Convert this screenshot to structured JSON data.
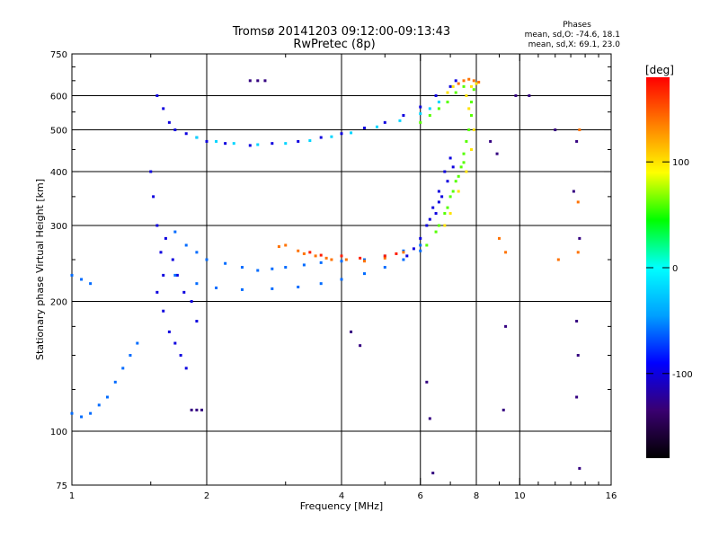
{
  "chart_data": {
    "type": "scatter",
    "title": "Tromsø 20141203 09:12:00-09:13:43",
    "subtitle": "RwPretec (8p)",
    "xlabel": "Frequency [MHz]",
    "ylabel": "Stationary phase Virtual Height [km]",
    "x_scale": "log",
    "y_scale": "log",
    "xlim": [
      1,
      16
    ],
    "ylim": [
      75,
      750
    ],
    "x_ticks": [
      1,
      2,
      4,
      6,
      8,
      10,
      16
    ],
    "y_ticks": [
      75,
      100,
      200,
      300,
      400,
      500,
      600,
      750
    ],
    "grid": true,
    "phase_stats": {
      "heading": "Phases",
      "line_o": "mean, sd,O: -74.6, 18.1",
      "line_x": "mean, sd,X:  69.1, 23.0"
    },
    "colorbar": {
      "label": "[deg]",
      "ticks": [
        100,
        0,
        -100
      ],
      "range": [
        -180,
        180
      ],
      "colormap": [
        "#000000",
        "#3a0070",
        "#0000ff",
        "#00a0ff",
        "#00ffff",
        "#00ff00",
        "#ffff00",
        "#ff8000",
        "#ff0000"
      ]
    },
    "series": [
      {
        "phase": -100,
        "points": [
          [
            1.55,
            600
          ],
          [
            1.6,
            560
          ],
          [
            1.65,
            520
          ],
          [
            1.7,
            500
          ],
          [
            1.8,
            490
          ],
          [
            1.9,
            480
          ],
          [
            2.0,
            470
          ],
          [
            2.2,
            465
          ],
          [
            2.5,
            460
          ],
          [
            2.8,
            465
          ],
          [
            3.2,
            470
          ],
          [
            3.6,
            480
          ],
          [
            4.0,
            490
          ],
          [
            4.5,
            505
          ],
          [
            5.0,
            520
          ],
          [
            5.5,
            540
          ],
          [
            6.0,
            565
          ],
          [
            6.5,
            600
          ],
          [
            7.0,
            630
          ],
          [
            7.2,
            650
          ],
          [
            1.5,
            400
          ],
          [
            1.52,
            350
          ],
          [
            1.55,
            300
          ],
          [
            1.58,
            260
          ],
          [
            1.6,
            230
          ],
          [
            1.55,
            210
          ],
          [
            1.6,
            190
          ],
          [
            1.65,
            170
          ],
          [
            1.7,
            160
          ],
          [
            1.75,
            150
          ],
          [
            1.8,
            140
          ],
          [
            1.62,
            280
          ],
          [
            1.68,
            250
          ],
          [
            1.72,
            230
          ],
          [
            1.78,
            210
          ],
          [
            1.85,
            200
          ],
          [
            1.9,
            180
          ],
          [
            6.0,
            280
          ],
          [
            6.2,
            300
          ],
          [
            6.4,
            330
          ],
          [
            6.6,
            360
          ],
          [
            6.8,
            400
          ],
          [
            7.0,
            430
          ],
          [
            6.5,
            320
          ],
          [
            6.7,
            350
          ],
          [
            6.9,
            380
          ],
          [
            7.1,
            410
          ],
          [
            6.3,
            310
          ],
          [
            6.6,
            340
          ],
          [
            5.8,
            265
          ],
          [
            5.6,
            255
          ]
        ]
      },
      {
        "phase": -60,
        "points": [
          [
            1.7,
            290
          ],
          [
            1.8,
            270
          ],
          [
            1.9,
            260
          ],
          [
            2.0,
            250
          ],
          [
            2.2,
            245
          ],
          [
            2.4,
            240
          ],
          [
            2.6,
            236
          ],
          [
            2.8,
            238
          ],
          [
            3.0,
            240
          ],
          [
            3.3,
            243
          ],
          [
            3.6,
            246
          ],
          [
            4.0,
            248
          ],
          [
            4.5,
            250
          ],
          [
            5.0,
            255
          ],
          [
            5.5,
            262
          ],
          [
            6.0,
            270
          ],
          [
            1.7,
            230
          ],
          [
            1.9,
            220
          ],
          [
            2.1,
            215
          ],
          [
            2.4,
            213
          ],
          [
            2.8,
            214
          ],
          [
            3.2,
            216
          ],
          [
            3.6,
            220
          ],
          [
            4.0,
            225
          ],
          [
            4.5,
            232
          ],
          [
            5.0,
            240
          ],
          [
            5.5,
            250
          ],
          [
            6.0,
            262
          ],
          [
            1.4,
            160
          ],
          [
            1.35,
            150
          ],
          [
            1.3,
            140
          ],
          [
            1.25,
            130
          ],
          [
            1.2,
            120
          ],
          [
            1.15,
            115
          ],
          [
            1.1,
            110
          ],
          [
            1.05,
            108
          ],
          [
            1.0,
            110
          ],
          [
            1.0,
            230
          ],
          [
            1.05,
            225
          ],
          [
            1.1,
            220
          ]
        ]
      },
      {
        "phase": -20,
        "points": [
          [
            1.9,
            480
          ],
          [
            2.1,
            470
          ],
          [
            2.3,
            465
          ],
          [
            2.6,
            462
          ],
          [
            3.0,
            465
          ],
          [
            3.4,
            472
          ],
          [
            3.8,
            482
          ],
          [
            4.2,
            492
          ],
          [
            4.8,
            508
          ],
          [
            5.4,
            525
          ],
          [
            6.0,
            545
          ],
          [
            6.3,
            560
          ],
          [
            6.6,
            580
          ]
        ]
      },
      {
        "phase": 60,
        "points": [
          [
            6.2,
            270
          ],
          [
            6.5,
            290
          ],
          [
            6.8,
            320
          ],
          [
            7.0,
            350
          ],
          [
            7.2,
            380
          ],
          [
            7.4,
            410
          ],
          [
            7.5,
            440
          ],
          [
            7.6,
            470
          ],
          [
            7.7,
            500
          ],
          [
            7.8,
            540
          ],
          [
            7.8,
            580
          ],
          [
            7.9,
            620
          ],
          [
            6.6,
            300
          ],
          [
            6.9,
            330
          ],
          [
            7.1,
            360
          ],
          [
            7.3,
            390
          ],
          [
            7.5,
            420
          ],
          [
            6.0,
            520
          ],
          [
            6.3,
            540
          ],
          [
            6.6,
            560
          ],
          [
            6.9,
            580
          ],
          [
            7.2,
            610
          ],
          [
            7.5,
            630
          ]
        ]
      },
      {
        "phase": 100,
        "points": [
          [
            6.8,
            300
          ],
          [
            7.0,
            320
          ],
          [
            7.3,
            360
          ],
          [
            7.6,
            400
          ],
          [
            7.8,
            450
          ],
          [
            7.9,
            500
          ],
          [
            7.7,
            560
          ],
          [
            7.6,
            600
          ],
          [
            7.8,
            630
          ],
          [
            8.0,
            640
          ],
          [
            6.9,
            610
          ],
          [
            7.1,
            630
          ]
        ]
      },
      {
        "phase": 140,
        "points": [
          [
            3.0,
            270
          ],
          [
            3.2,
            262
          ],
          [
            3.5,
            255
          ],
          [
            3.8,
            250
          ],
          [
            4.1,
            250
          ],
          [
            4.5,
            248
          ],
          [
            5.0,
            252
          ],
          [
            5.5,
            260
          ],
          [
            2.9,
            268
          ],
          [
            3.3,
            258
          ],
          [
            3.7,
            252
          ],
          [
            7.3,
            640
          ],
          [
            7.5,
            650
          ],
          [
            7.7,
            655
          ],
          [
            7.9,
            650
          ],
          [
            8.1,
            645
          ],
          [
            13.5,
            340
          ],
          [
            13.6,
            500
          ],
          [
            9.0,
            280
          ],
          [
            9.3,
            260
          ],
          [
            13.5,
            260
          ],
          [
            12.2,
            250
          ]
        ]
      },
      {
        "phase": 170,
        "points": [
          [
            4.0,
            255
          ],
          [
            4.4,
            252
          ],
          [
            5.0,
            255
          ],
          [
            5.3,
            258
          ],
          [
            3.4,
            260
          ],
          [
            3.6,
            256
          ]
        ]
      },
      {
        "phase": -130,
        "points": [
          [
            8.6,
            470
          ],
          [
            8.9,
            440
          ],
          [
            9.8,
            600
          ],
          [
            10.5,
            600
          ],
          [
            12.0,
            500
          ],
          [
            13.4,
            470
          ],
          [
            13.2,
            360
          ],
          [
            13.6,
            280
          ],
          [
            13.4,
            180
          ],
          [
            13.5,
            150
          ],
          [
            13.4,
            120
          ],
          [
            13.6,
            82
          ],
          [
            9.3,
            175
          ],
          [
            9.2,
            112
          ],
          [
            6.3,
            107
          ],
          [
            6.4,
            80
          ],
          [
            2.5,
            650
          ],
          [
            2.6,
            650
          ],
          [
            2.7,
            650
          ],
          [
            1.9,
            112
          ],
          [
            1.95,
            112
          ],
          [
            1.85,
            112
          ],
          [
            6.2,
            130
          ],
          [
            4.2,
            170
          ],
          [
            4.4,
            158
          ]
        ]
      }
    ]
  }
}
